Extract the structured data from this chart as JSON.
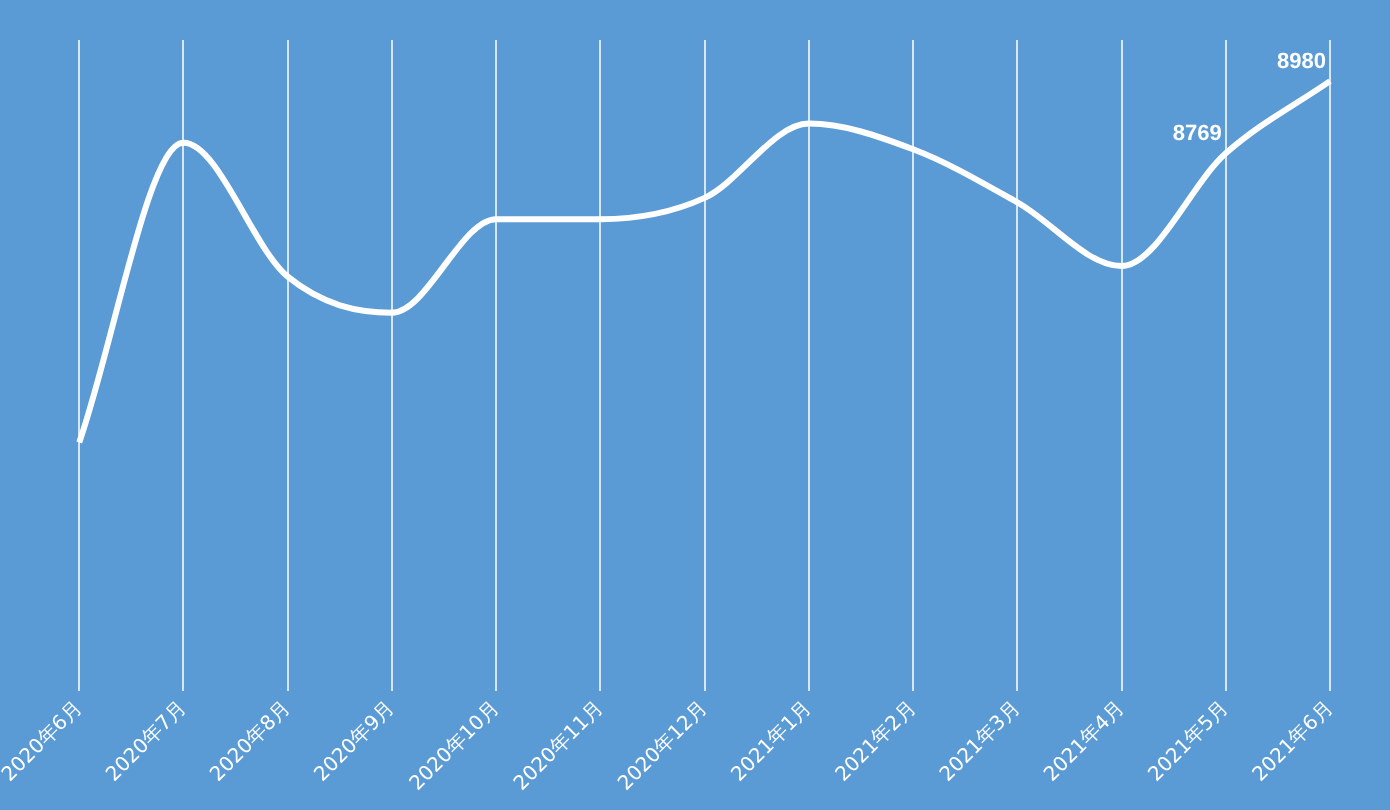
{
  "chart_data": {
    "type": "line",
    "categories": [
      "2020年6月",
      "2020年7月",
      "2020年8月",
      "2020年9月",
      "2020年10月",
      "2020年11月",
      "2020年12月",
      "2021年1月",
      "2021年2月",
      "2021年3月",
      "2021年4月",
      "2021年5月",
      "2021年6月"
    ],
    "series": [
      {
        "color": "#ffffff",
        "values": [
          7925,
          8800,
          8409,
          8304,
          8577,
          8577,
          8639,
          8856,
          8781,
          8626,
          8440,
          8769,
          8980
        ],
        "value_labels": [
          null,
          null,
          null,
          null,
          null,
          null,
          null,
          null,
          null,
          null,
          null,
          "8769",
          "8980"
        ]
      }
    ],
    "ylim": [
      7200,
      9100
    ],
    "grid": "x",
    "legend": false,
    "marker": "none",
    "line_style": "solid",
    "tick_labels": "x"
  }
}
